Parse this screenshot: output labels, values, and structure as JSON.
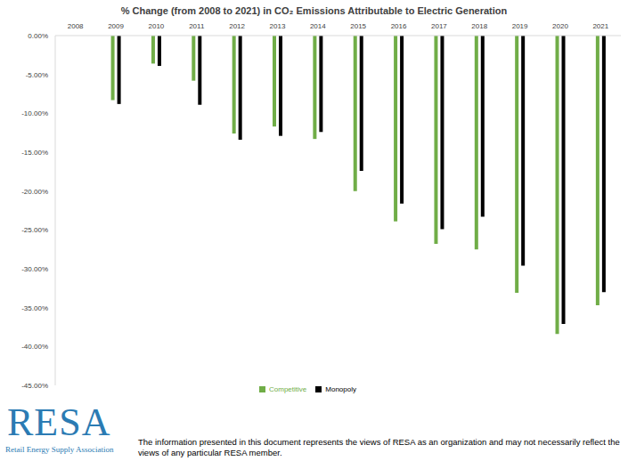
{
  "chart_data": {
    "type": "bar",
    "title": "% Change (from 2008 to 2021) in CO₂ Emissions Attributable to Electric Generation",
    "categories": [
      "2008",
      "2009",
      "2010",
      "2011",
      "2012",
      "2013",
      "2014",
      "2015",
      "2016",
      "2017",
      "2018",
      "2019",
      "2020",
      "2021"
    ],
    "series": [
      {
        "name": "Competitive",
        "color": "#70ad47",
        "values": [
          0,
          -8.3,
          -3.6,
          -5.8,
          -12.6,
          -11.7,
          -13.3,
          -20.0,
          -23.9,
          -26.8,
          -27.5,
          -33.1,
          -38.4,
          -34.7
        ]
      },
      {
        "name": "Monopoly",
        "color": "#000000",
        "values": [
          0,
          -8.8,
          -3.9,
          -8.9,
          -13.4,
          -12.9,
          -12.4,
          -17.4,
          -21.6,
          -24.9,
          -23.3,
          -29.6,
          -37.1,
          -33.0
        ]
      }
    ],
    "ylim": [
      -45,
      0
    ],
    "yticks": [
      {
        "value": 0,
        "label": "0.00%"
      },
      {
        "value": -5,
        "label": "-5.00%"
      },
      {
        "value": -10,
        "label": "-10.00%"
      },
      {
        "value": -15,
        "label": "-15.00%"
      },
      {
        "value": -20,
        "label": "-20.00%"
      },
      {
        "value": -25,
        "label": "-25.00%"
      },
      {
        "value": -30,
        "label": "-30.00%"
      },
      {
        "value": -35,
        "label": "-35.00%"
      },
      {
        "value": -40,
        "label": "-40.00%"
      },
      {
        "value": -45,
        "label": "-45.00%"
      }
    ],
    "grid": false,
    "legend": "bottom",
    "annotations": [
      "RESA",
      "Retail Energy Supply Association",
      "The information presented in this document represents the views of RESA as an organization and may not necessarily reflect the views of any particular RESA member."
    ]
  }
}
